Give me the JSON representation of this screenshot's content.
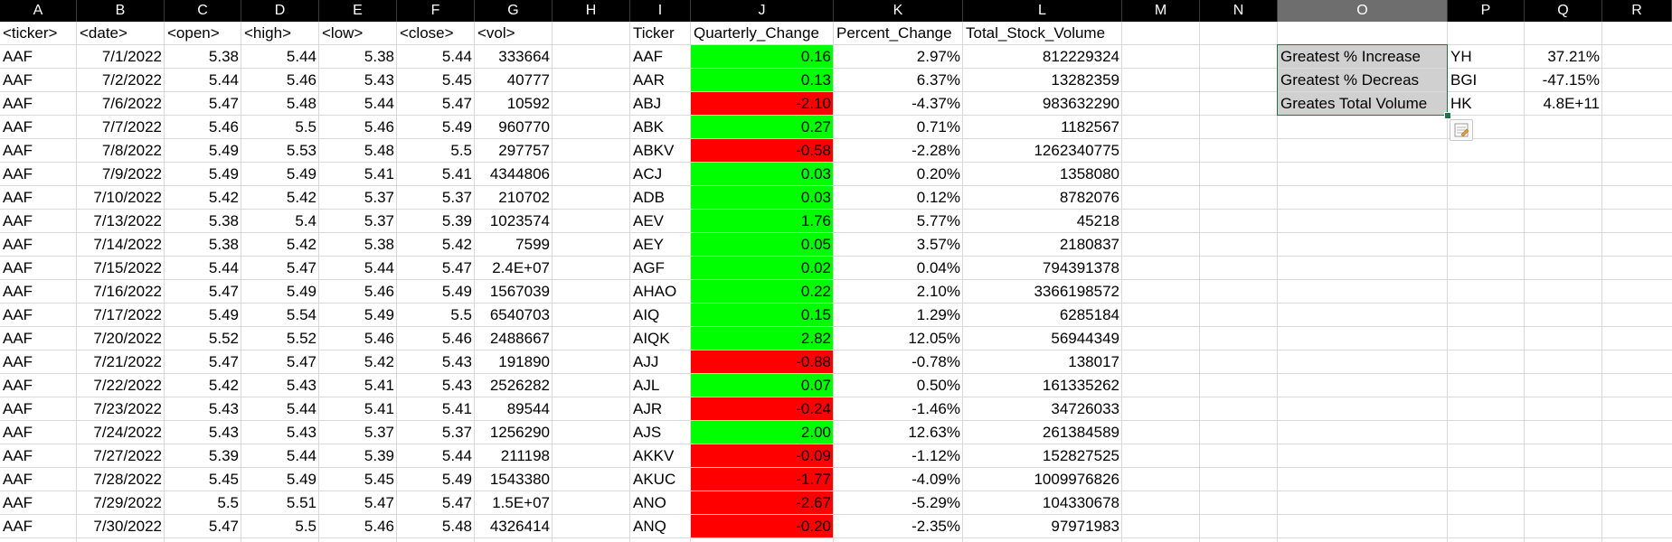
{
  "columns": [
    "A",
    "B",
    "C",
    "D",
    "E",
    "F",
    "G",
    "H",
    "I",
    "J",
    "K",
    "L",
    "M",
    "N",
    "O",
    "P",
    "Q",
    "R"
  ],
  "selected_column": "O",
  "raw_headers": [
    "<ticker>",
    "<date>",
    "<open>",
    "<high>",
    "<low>",
    "<close>",
    "<vol>"
  ],
  "raw_rows": [
    [
      "AAF",
      "7/1/2022",
      "5.38",
      "5.44",
      "5.38",
      "5.44",
      "333664"
    ],
    [
      "AAF",
      "7/2/2022",
      "5.44",
      "5.46",
      "5.43",
      "5.45",
      "40777"
    ],
    [
      "AAF",
      "7/6/2022",
      "5.47",
      "5.48",
      "5.44",
      "5.47",
      "10592"
    ],
    [
      "AAF",
      "7/7/2022",
      "5.46",
      "5.5",
      "5.46",
      "5.49",
      "960770"
    ],
    [
      "AAF",
      "7/8/2022",
      "5.49",
      "5.53",
      "5.48",
      "5.5",
      "297757"
    ],
    [
      "AAF",
      "7/9/2022",
      "5.49",
      "5.49",
      "5.41",
      "5.41",
      "4344806"
    ],
    [
      "AAF",
      "7/10/2022",
      "5.42",
      "5.42",
      "5.37",
      "5.37",
      "210702"
    ],
    [
      "AAF",
      "7/13/2022",
      "5.38",
      "5.4",
      "5.37",
      "5.39",
      "1023574"
    ],
    [
      "AAF",
      "7/14/2022",
      "5.38",
      "5.42",
      "5.38",
      "5.42",
      "7599"
    ],
    [
      "AAF",
      "7/15/2022",
      "5.44",
      "5.47",
      "5.44",
      "5.47",
      "2.4E+07"
    ],
    [
      "AAF",
      "7/16/2022",
      "5.47",
      "5.49",
      "5.46",
      "5.49",
      "1567039"
    ],
    [
      "AAF",
      "7/17/2022",
      "5.49",
      "5.54",
      "5.49",
      "5.5",
      "6540703"
    ],
    [
      "AAF",
      "7/20/2022",
      "5.52",
      "5.52",
      "5.46",
      "5.46",
      "2488667"
    ],
    [
      "AAF",
      "7/21/2022",
      "5.47",
      "5.47",
      "5.42",
      "5.43",
      "191890"
    ],
    [
      "AAF",
      "7/22/2022",
      "5.42",
      "5.43",
      "5.41",
      "5.43",
      "2526282"
    ],
    [
      "AAF",
      "7/23/2022",
      "5.43",
      "5.44",
      "5.41",
      "5.41",
      "89544"
    ],
    [
      "AAF",
      "7/24/2022",
      "5.43",
      "5.43",
      "5.37",
      "5.37",
      "1256290"
    ],
    [
      "AAF",
      "7/27/2022",
      "5.39",
      "5.44",
      "5.39",
      "5.44",
      "211198"
    ],
    [
      "AAF",
      "7/28/2022",
      "5.45",
      "5.49",
      "5.45",
      "5.49",
      "1543380"
    ],
    [
      "AAF",
      "7/29/2022",
      "5.5",
      "5.51",
      "5.47",
      "5.47",
      "1.5E+07"
    ],
    [
      "AAF",
      "7/30/2022",
      "5.47",
      "5.5",
      "5.46",
      "5.48",
      "4326414"
    ]
  ],
  "summary_headers": [
    "Ticker",
    "Quarterly_Change",
    "Percent_Change",
    "Total_Stock_Volume"
  ],
  "summary_rows": [
    [
      "AAF",
      "0.16",
      "2.97%",
      "812229324"
    ],
    [
      "AAR",
      "0.13",
      "6.37%",
      "13282359"
    ],
    [
      "ABJ",
      "-2.10",
      "-4.37%",
      "983632290"
    ],
    [
      "ABK",
      "0.27",
      "0.71%",
      "1182567"
    ],
    [
      "ABKV",
      "-0.58",
      "-2.28%",
      "1262340775"
    ],
    [
      "ACJ",
      "0.03",
      "0.20%",
      "1358080"
    ],
    [
      "ADB",
      "0.03",
      "0.12%",
      "8782076"
    ],
    [
      "AEV",
      "1.76",
      "5.77%",
      "45218"
    ],
    [
      "AEY",
      "0.05",
      "3.57%",
      "2180837"
    ],
    [
      "AGF",
      "0.02",
      "0.04%",
      "794391378"
    ],
    [
      "AHAO",
      "0.22",
      "2.10%",
      "3366198572"
    ],
    [
      "AIQ",
      "0.15",
      "1.29%",
      "6285184"
    ],
    [
      "AIQK",
      "2.82",
      "12.05%",
      "56944349"
    ],
    [
      "AJJ",
      "-0.88",
      "-0.78%",
      "138017"
    ],
    [
      "AJL",
      "0.07",
      "0.50%",
      "161335262"
    ],
    [
      "AJR",
      "-0.24",
      "-1.46%",
      "34726033"
    ],
    [
      "AJS",
      "2.00",
      "12.63%",
      "261384589"
    ],
    [
      "AKKV",
      "-0.09",
      "-1.12%",
      "152827525"
    ],
    [
      "AKUC",
      "-1.77",
      "-4.09%",
      "1009976826"
    ],
    [
      "ANO",
      "-2.67",
      "-5.29%",
      "104330678"
    ],
    [
      "ANQ",
      "-0.20",
      "-2.35%",
      "97971983"
    ]
  ],
  "greatest": [
    {
      "label": "Greatest % Increase",
      "ticker": "YH",
      "value": "37.21%"
    },
    {
      "label": "Greatest % Decreas",
      "ticker": "BGI",
      "value": "-47.15%"
    },
    {
      "label": "Greates Total Volume",
      "ticker": "HK",
      "value": "4.8E+11"
    }
  ],
  "colors": {
    "positive": "#00ff00",
    "negative": "#ff0000",
    "header_bg": "#000000",
    "header_selected": "#6e6e6e",
    "gridline": "#d9d9d9",
    "selection": "#217346",
    "summary_fill": "#d0d0d0"
  },
  "icons": {
    "quick_analysis": "quick-analysis-icon"
  }
}
